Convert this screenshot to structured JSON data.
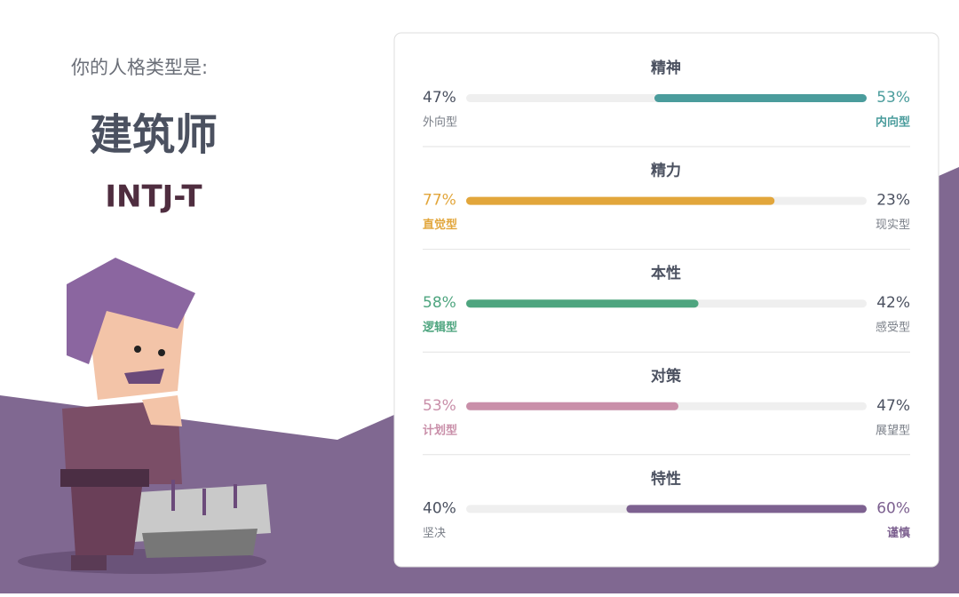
{
  "header": {
    "prompt": "你的人格类型是:",
    "type_name": "建筑师",
    "type_code": "INTJ-T"
  },
  "traits": [
    {
      "title": "精神",
      "left_value": 47,
      "left_percent": "47%",
      "left_name": "外向型",
      "right_value": 53,
      "right_percent": "53%",
      "right_name": "内向型",
      "dominant": "right",
      "color": "#4a9c9c"
    },
    {
      "title": "精力",
      "left_value": 77,
      "left_percent": "77%",
      "left_name": "直觉型",
      "right_value": 23,
      "right_percent": "23%",
      "right_name": "现实型",
      "dominant": "left",
      "color": "#e2a63b"
    },
    {
      "title": "本性",
      "left_value": 58,
      "left_percent": "58%",
      "left_name": "逻辑型",
      "right_value": 42,
      "right_percent": "42%",
      "right_name": "感受型",
      "dominant": "left",
      "color": "#4ea57f"
    },
    {
      "title": "对策",
      "left_value": 53,
      "left_percent": "53%",
      "left_name": "计划型",
      "right_value": 47,
      "right_percent": "47%",
      "right_name": "展望型",
      "dominant": "left",
      "color": "#c98fa9"
    },
    {
      "title": "特性",
      "left_value": 40,
      "left_percent": "40%",
      "left_name": "坚决",
      "right_value": 60,
      "right_percent": "60%",
      "right_name": "谨慎",
      "dominant": "right",
      "color": "#7d6190"
    }
  ]
}
